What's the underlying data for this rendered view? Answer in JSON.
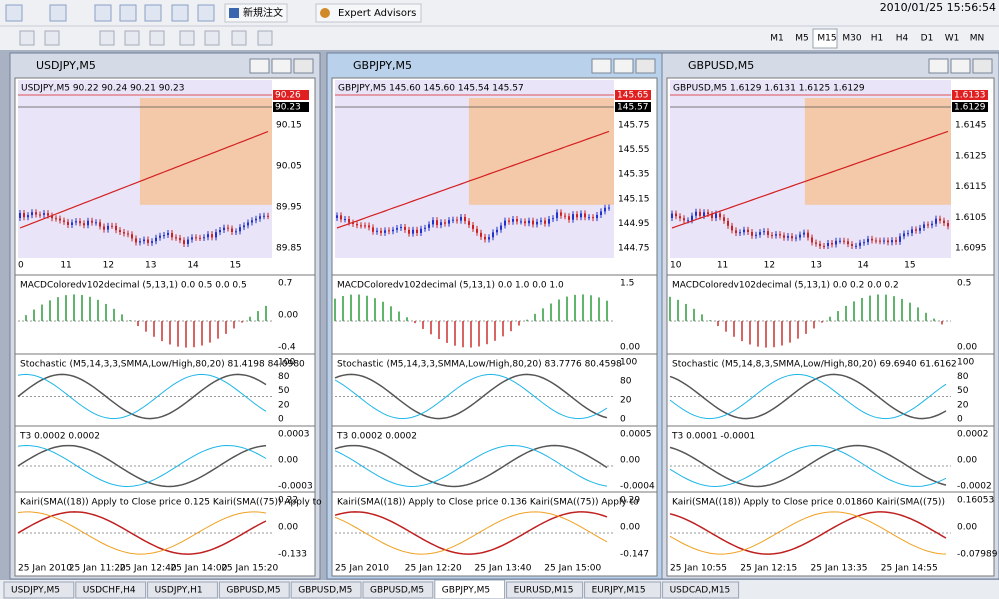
{
  "toolbar": {
    "new_order": "新規注文",
    "expert_advisors": "Expert Advisors",
    "timeframes": [
      "M1",
      "M5",
      "M15",
      "M30",
      "H1",
      "H4",
      "D1",
      "W1",
      "MN"
    ]
  },
  "clock": "2010/01/25 15:56:54",
  "windows": [
    {
      "title": "USDJPY,M5",
      "info": "USDJPY,M5  90.22 90.24 90.21 90.23",
      "price_ticks": [
        "90.15",
        "90.05",
        "89.95",
        "89.85"
      ],
      "price_tags": [
        "90.26",
        "90.23"
      ],
      "time_row": [
        "0",
        "11",
        "12",
        "13",
        "14",
        "15"
      ],
      "panels": [
        {
          "label": "MACDColoredv102decimal (5,13,1) 0.0 0.5 0.0 0.5",
          "ticks": [
            "0.7",
            "0.00",
            "-0.4"
          ]
        },
        {
          "label": "Stochastic (M5,14,3,3,SMMA,Low/High,80,20) 81.4198 84.0980",
          "ticks": [
            "100",
            "80",
            "50",
            "20",
            "0"
          ]
        },
        {
          "label": "T3 0.0002 0.0002",
          "ticks": [
            "0.0003",
            "0.00",
            "-0.0003"
          ]
        },
        {
          "label": "Kairi(SMA((18)) Apply to Close price 0.125  Kairi(SMA((75)) Apply to",
          "ticks": [
            "0.22",
            "0.00",
            "-0.133"
          ]
        }
      ],
      "times": [
        "25 Jan 2010",
        "25 Jan 11:20",
        "25 Jan 12:40",
        "25 Jan 14:00",
        "25 Jan 15:20"
      ]
    },
    {
      "title": "GBPJPY,M5",
      "info": "GBPJPY,M5  145.60 145.60 145.54 145.57",
      "price_ticks": [
        "145.75",
        "145.55",
        "145.35",
        "145.15",
        "144.95",
        "144.75"
      ],
      "price_tags": [
        "145.65",
        "145.57"
      ],
      "time_row": [],
      "panels": [
        {
          "label": "MACDColoredv102decimal (5,13,1) 0.0 1.0 0.0 1.0",
          "ticks": [
            "1.5",
            "0.00"
          ]
        },
        {
          "label": "Stochastic (M5,14,3,3,SMMA,Low/High,80,20) 83.7776 80.4598",
          "ticks": [
            "100",
            "80",
            "20",
            "0"
          ]
        },
        {
          "label": "T3 0.0002 0.0002",
          "ticks": [
            "0.0005",
            "0.00",
            "-0.0004"
          ]
        },
        {
          "label": "Kairi(SMA((18)) Apply to Close price 0.136  Kairi(SMA((75)) Apply to",
          "ticks": [
            "0.29",
            "0.00",
            "-0.147"
          ]
        }
      ],
      "times": [
        "25 Jan 2010",
        "25 Jan 12:20",
        "25 Jan 13:40",
        "25 Jan 15:00"
      ]
    },
    {
      "title": "GBPUSD,M5",
      "info": "GBPUSD,M5  1.6129 1.6131 1.6125 1.6129",
      "price_ticks": [
        "1.6145",
        "1.6125",
        "1.6115",
        "1.6105",
        "1.6095"
      ],
      "price_tags": [
        "1.6133",
        "1.6129"
      ],
      "time_row": [
        "10",
        "11",
        "12",
        "13",
        "14",
        "15"
      ],
      "panels": [
        {
          "label": "MACDColoredv102decimal (5,13,1) 0.0 0.2 0.0 0.2",
          "ticks": [
            "0.5",
            "0.00"
          ]
        },
        {
          "label": "Stochastic (M5,14,8,3,SMMA,Low/High,80,20) 69.6940 61.6162",
          "ticks": [
            "100",
            "80",
            "50",
            "20",
            "0"
          ]
        },
        {
          "label": "T3 0.0001 -0.0001",
          "ticks": [
            "0.0002",
            "0.00",
            "-0.0002"
          ]
        },
        {
          "label": "Kairi(SMA((18)) Apply to Close price 0.01860  Kairi(SMA((75))",
          "ticks": [
            "0.16053",
            "0.00",
            "-0.07989"
          ]
        }
      ],
      "times": [
        "25 Jan 10:55",
        "25 Jan 12:15",
        "25 Jan 13:35",
        "25 Jan 14:55"
      ]
    }
  ],
  "tabs": [
    "USDJPY,M5",
    "USDCHF,H4",
    "USDJPY,H1",
    "GBPUSD,M5",
    "GBPUSD,M5",
    "GBPUSD,M5",
    "GBPJPY,M5",
    "EURUSD,M15",
    "EURJPY,M15",
    "USDCAD,M15"
  ]
}
